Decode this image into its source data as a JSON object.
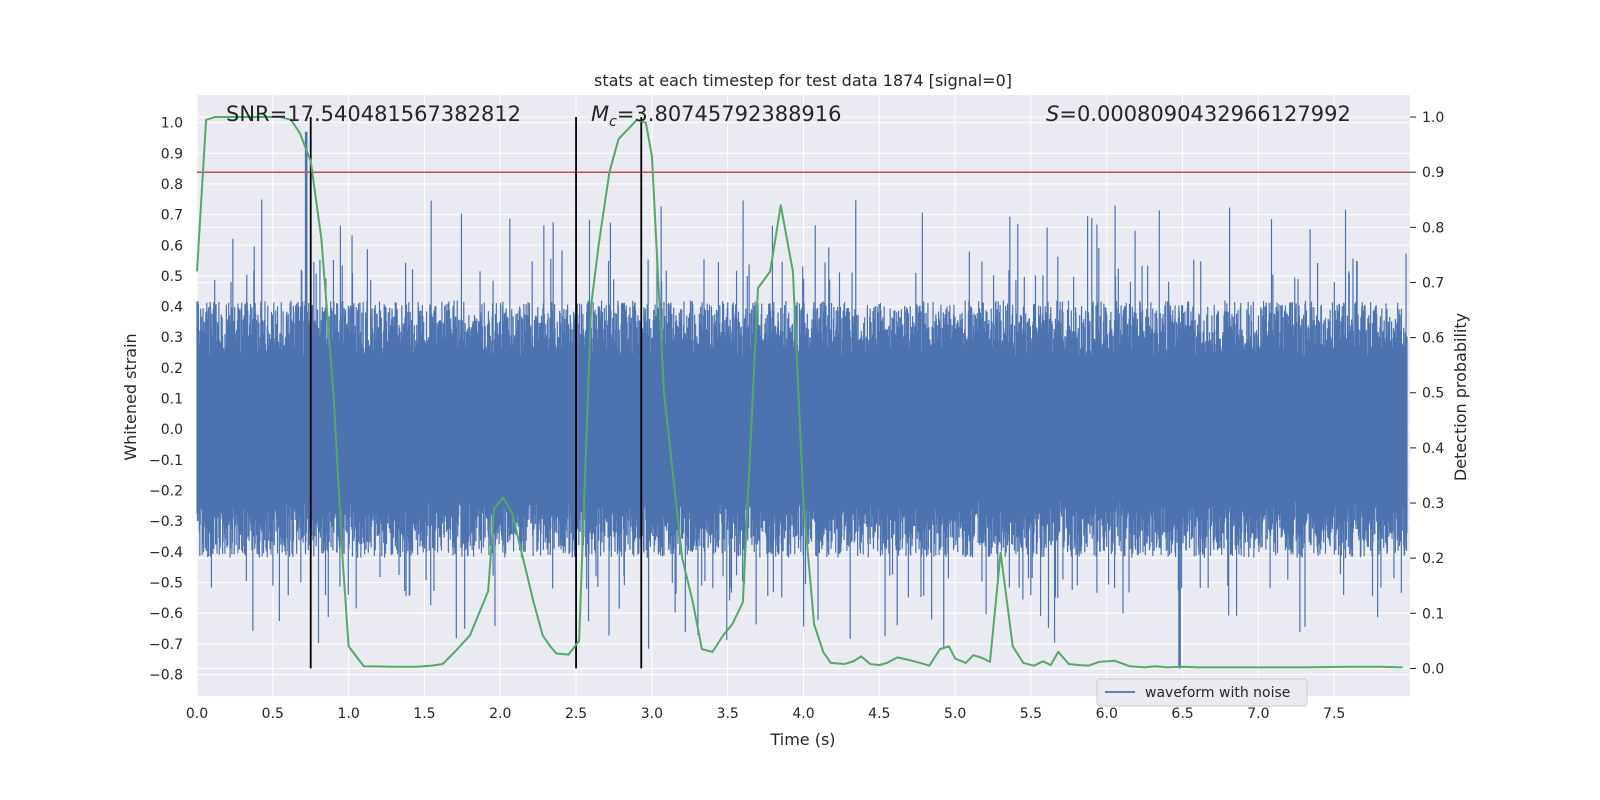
{
  "chart_data": {
    "type": "line",
    "title": "stats at each timestep for test data 1874 [signal=0]",
    "xlabel": "Time (s)",
    "ylabel_left": "Whitened strain",
    "ylabel_right": "Detection probability",
    "xlim": [
      0,
      8
    ],
    "ylim_left": [
      -0.87,
      1.09
    ],
    "ylim_right": [
      -0.05,
      1.04
    ],
    "x_ticks": [
      "0.0",
      "0.5",
      "1.0",
      "1.5",
      "2.0",
      "2.5",
      "3.0",
      "3.5",
      "4.0",
      "4.5",
      "5.0",
      "5.5",
      "6.0",
      "6.5",
      "7.0",
      "7.5"
    ],
    "y_left_ticks": [
      "1.0",
      "0.9",
      "0.8",
      "0.7",
      "0.6",
      "0.5",
      "0.4",
      "0.3",
      "0.2",
      "0.1",
      "0.0",
      "−0.1",
      "−0.2",
      "−0.3",
      "−0.4",
      "−0.5",
      "−0.6",
      "−0.7",
      "−0.8"
    ],
    "y_right_ticks": [
      "1.0",
      "0.9",
      "0.8",
      "0.7",
      "0.6",
      "0.5",
      "0.4",
      "0.3",
      "0.2",
      "0.1",
      "0.0"
    ],
    "annotations": {
      "snr": "SNR=17.540481567382812",
      "mc_prefix": "M",
      "mc_sub": "c",
      "mc_value": "=3.80745792388916",
      "s_prefix": "S",
      "s_value": "=0.0008090432966127992"
    },
    "series": [
      {
        "name": "waveform with noise",
        "color": "#4c72b0",
        "axis": "left",
        "kind": "dense noise waveform",
        "spread_95": [
          -0.42,
          0.42
        ],
        "peak_max": 0.97,
        "peak_min": -0.78
      },
      {
        "color": "#55a868",
        "axis": "right",
        "x": [
          0.0,
          0.06,
          0.12,
          0.18,
          0.3,
          0.42,
          0.55,
          0.62,
          0.68,
          0.75,
          0.82,
          0.9,
          0.96,
          1.0,
          1.1,
          1.3,
          1.45,
          1.55,
          1.62,
          1.7,
          1.8,
          1.92,
          1.96,
          2.02,
          2.08,
          2.15,
          2.22,
          2.28,
          2.33,
          2.37,
          2.45,
          2.52,
          2.6,
          2.65,
          2.72,
          2.78,
          2.85,
          2.9,
          2.96,
          3.0,
          3.08,
          3.2,
          3.27,
          3.33,
          3.4,
          3.47,
          3.53,
          3.6,
          3.7,
          3.78,
          3.85,
          3.93,
          4.0,
          4.07,
          4.13,
          4.18,
          4.27,
          4.33,
          4.38,
          4.44,
          4.5,
          4.55,
          4.62,
          4.7,
          4.77,
          4.83,
          4.9,
          4.96,
          5.0,
          5.07,
          5.12,
          5.17,
          5.23,
          5.3,
          5.38,
          5.45,
          5.52,
          5.58,
          5.63,
          5.68,
          5.75,
          5.82,
          5.88,
          5.95,
          6.05,
          6.15,
          6.25,
          6.32,
          6.4,
          6.5,
          6.6,
          6.7,
          6.8,
          7.0,
          7.3,
          7.6,
          7.8,
          7.95
        ],
        "y": [
          0.72,
          0.995,
          1.0,
          1.0,
          1.0,
          1.0,
          1.0,
          0.995,
          0.97,
          0.92,
          0.78,
          0.5,
          0.2,
          0.04,
          0.004,
          0.003,
          0.003,
          0.005,
          0.008,
          0.03,
          0.06,
          0.14,
          0.29,
          0.31,
          0.28,
          0.2,
          0.12,
          0.06,
          0.04,
          0.027,
          0.025,
          0.05,
          0.66,
          0.77,
          0.9,
          0.96,
          0.98,
          0.995,
          0.99,
          0.93,
          0.5,
          0.2,
          0.12,
          0.035,
          0.03,
          0.06,
          0.08,
          0.12,
          0.69,
          0.72,
          0.84,
          0.72,
          0.3,
          0.08,
          0.03,
          0.01,
          0.008,
          0.013,
          0.022,
          0.008,
          0.006,
          0.01,
          0.02,
          0.015,
          0.01,
          0.005,
          0.035,
          0.04,
          0.018,
          0.01,
          0.024,
          0.02,
          0.012,
          0.21,
          0.04,
          0.01,
          0.005,
          0.013,
          0.006,
          0.03,
          0.008,
          0.006,
          0.005,
          0.012,
          0.014,
          0.004,
          0.002,
          0.004,
          0.002,
          0.003,
          0.002,
          0.002,
          0.002,
          0.002,
          0.002,
          0.003,
          0.003,
          0.002
        ]
      }
    ],
    "threshold_right": 0.9,
    "threshold_color": "#c44e52",
    "event_lines_x": [
      0.75,
      2.5,
      2.93
    ],
    "event_lines_color": "#000000",
    "legend": {
      "label": "waveform with noise",
      "placement": "lower-right"
    },
    "background": "#eaeaf2",
    "grid": true
  }
}
